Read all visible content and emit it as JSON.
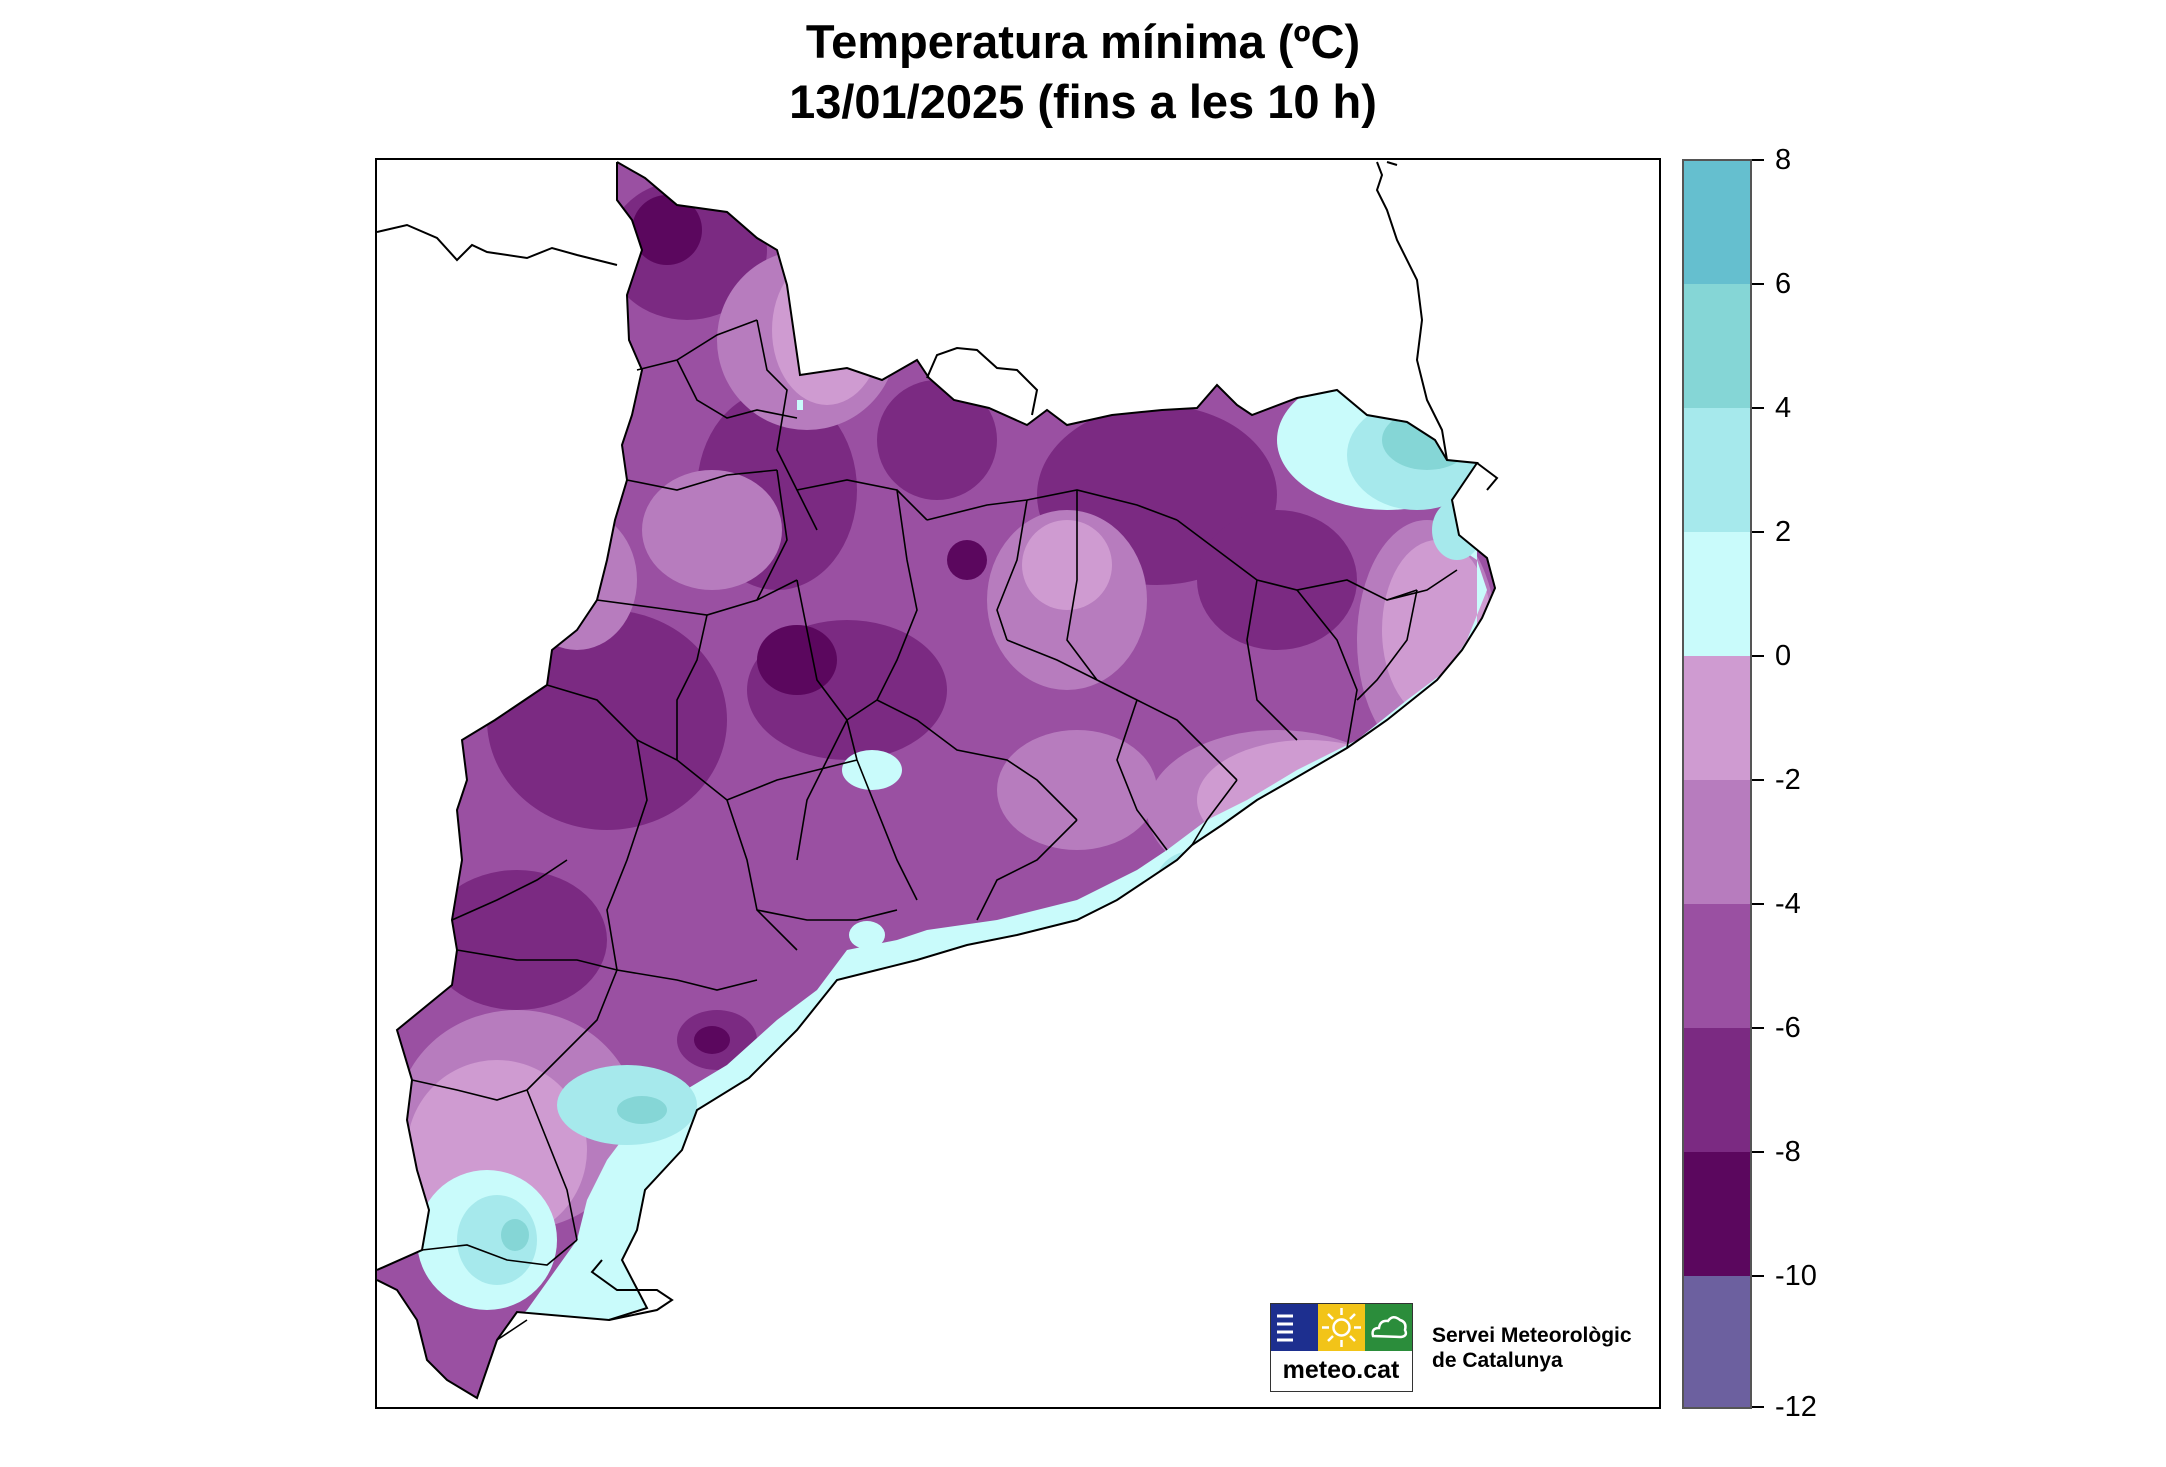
{
  "title": {
    "line1": "Temperatura mínima (ºC)",
    "line2": "13/01/2025 (fins a les 10 h)"
  },
  "legend": {
    "labels": [
      "8",
      "6",
      "4",
      "2",
      "0",
      "-2",
      "-4",
      "-6",
      "-8",
      "-10",
      "-12"
    ],
    "bins": [
      {
        "min": 6,
        "max": 8,
        "color": "#65bfcf"
      },
      {
        "min": 4,
        "max": 6,
        "color": "#85d6d6"
      },
      {
        "min": 2,
        "max": 4,
        "color": "#a6e9ec"
      },
      {
        "min": 0,
        "max": 2,
        "color": "#c9fbfb"
      },
      {
        "min": -2,
        "max": 0,
        "color": "#cf9bd1"
      },
      {
        "min": -4,
        "max": -2,
        "color": "#b77cbe"
      },
      {
        "min": -6,
        "max": -4,
        "color": "#9a50a2"
      },
      {
        "min": -8,
        "max": -6,
        "color": "#7b2a82"
      },
      {
        "min": -10,
        "max": -8,
        "color": "#5b075e"
      },
      {
        "min": -12,
        "max": -10,
        "color": "#6c609f"
      }
    ]
  },
  "logo": {
    "text": "meteo.cat",
    "colors": {
      "blue": "#1d2f8f",
      "yellow": "#f2c418",
      "green": "#2b8d3b"
    }
  },
  "organization": {
    "line1": "Servei Meteorològic",
    "line2": "de Catalunya"
  }
}
